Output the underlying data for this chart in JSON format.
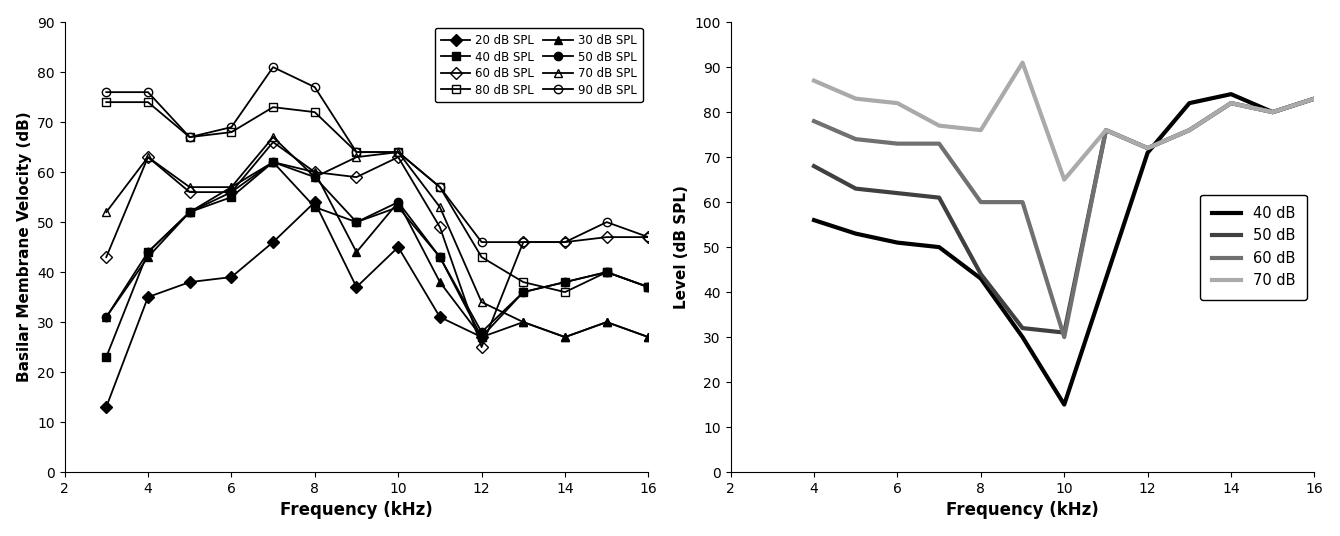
{
  "left": {
    "xlabel": "Frequency (kHz)",
    "ylabel": "Basilar Membrane Velocity (dB)",
    "xlim": [
      2,
      16
    ],
    "ylim": [
      0,
      90
    ],
    "xticks": [
      2,
      4,
      6,
      8,
      10,
      12,
      14,
      16
    ],
    "yticks": [
      0,
      10,
      20,
      30,
      40,
      50,
      60,
      70,
      80,
      90
    ],
    "series": [
      {
        "label": "20 dB SPL",
        "color": "#000000",
        "marker": "D",
        "markersize": 6,
        "fillstyle": "full",
        "linewidth": 1.3,
        "x": [
          3,
          4,
          5,
          6,
          7,
          8,
          9,
          10,
          11,
          12
        ],
        "y": [
          13,
          35,
          38,
          39,
          46,
          54,
          37,
          45,
          31,
          27
        ]
      },
      {
        "label": "30 dB SPL",
        "color": "#000000",
        "marker": "^",
        "markersize": 6,
        "fillstyle": "full",
        "linewidth": 1.3,
        "x": [
          3,
          4,
          5,
          6,
          7,
          8,
          9,
          10,
          11,
          12,
          13,
          14,
          15,
          16
        ],
        "y": [
          31,
          43,
          52,
          57,
          62,
          60,
          44,
          54,
          38,
          27,
          30,
          27,
          30,
          27
        ]
      },
      {
        "label": "40 dB SPL",
        "color": "#000000",
        "marker": "s",
        "markersize": 6,
        "fillstyle": "full",
        "linewidth": 1.3,
        "x": [
          3,
          4,
          5,
          6,
          7,
          8,
          9,
          10,
          11,
          12,
          13,
          14,
          15,
          16
        ],
        "y": [
          23,
          44,
          52,
          55,
          62,
          53,
          50,
          53,
          43,
          27,
          36,
          38,
          40,
          37
        ]
      },
      {
        "label": "50 dB SPL",
        "color": "#000000",
        "marker": "o",
        "markersize": 6,
        "fillstyle": "full",
        "linewidth": 1.3,
        "x": [
          3,
          4,
          5,
          6,
          7,
          8,
          9,
          10,
          11,
          12,
          13,
          14,
          15,
          16
        ],
        "y": [
          31,
          44,
          52,
          56,
          62,
          59,
          50,
          54,
          43,
          28,
          36,
          38,
          40,
          37
        ]
      },
      {
        "label": "60 dB SPL",
        "color": "#000000",
        "marker": "D",
        "markersize": 6,
        "fillstyle": "none",
        "linewidth": 1.3,
        "x": [
          3,
          4,
          5,
          6,
          7,
          8,
          9,
          10,
          11,
          12,
          13,
          14,
          15,
          16
        ],
        "y": [
          43,
          63,
          56,
          56,
          66,
          60,
          59,
          63,
          49,
          25,
          46,
          46,
          47,
          47
        ]
      },
      {
        "label": "70 dB SPL",
        "color": "#000000",
        "marker": "^",
        "markersize": 6,
        "fillstyle": "none",
        "linewidth": 1.3,
        "x": [
          3,
          4,
          5,
          6,
          7,
          8,
          9,
          10,
          11,
          12,
          13,
          14,
          15,
          16
        ],
        "y": [
          52,
          63,
          57,
          57,
          67,
          59,
          63,
          64,
          53,
          34,
          30,
          27,
          30,
          27
        ]
      },
      {
        "label": "80 dB SPL",
        "color": "#000000",
        "marker": "s",
        "markersize": 6,
        "fillstyle": "none",
        "linewidth": 1.3,
        "x": [
          3,
          4,
          5,
          6,
          7,
          8,
          9,
          10,
          11,
          12,
          13,
          14,
          15,
          16
        ],
        "y": [
          74,
          74,
          67,
          68,
          73,
          72,
          64,
          64,
          57,
          43,
          38,
          36,
          40,
          37
        ]
      },
      {
        "label": "90 dB SPL",
        "color": "#000000",
        "marker": "o",
        "markersize": 6,
        "fillstyle": "none",
        "linewidth": 1.3,
        "x": [
          3,
          4,
          5,
          6,
          7,
          8,
          9,
          10,
          11,
          12,
          13,
          14,
          15,
          16
        ],
        "y": [
          76,
          76,
          67,
          69,
          81,
          77,
          64,
          64,
          57,
          46,
          46,
          46,
          50,
          47
        ]
      }
    ]
  },
  "right": {
    "xlabel": "Frequency (kHz)",
    "ylabel": "Level (dB SPL)",
    "xlim": [
      2,
      16
    ],
    "ylim": [
      0,
      100
    ],
    "xticks": [
      2,
      4,
      6,
      8,
      10,
      12,
      14,
      16
    ],
    "yticks": [
      0,
      10,
      20,
      30,
      40,
      50,
      60,
      70,
      80,
      90,
      100
    ],
    "series": [
      {
        "label": "40 dB",
        "color": "#000000",
        "linewidth": 3.0,
        "x": [
          4,
          5,
          6,
          7,
          8,
          9,
          10,
          12,
          13,
          14,
          15,
          16
        ],
        "y": [
          56,
          53,
          51,
          50,
          43,
          30,
          15,
          71,
          82,
          84,
          80,
          83
        ]
      },
      {
        "label": "50 dB",
        "color": "#404040",
        "linewidth": 3.0,
        "x": [
          4,
          5,
          6,
          7,
          8,
          9,
          10,
          11,
          12,
          13,
          14,
          15,
          16
        ],
        "y": [
          68,
          63,
          62,
          61,
          44,
          32,
          31,
          76,
          72,
          76,
          82,
          80,
          83
        ]
      },
      {
        "label": "60 dB",
        "color": "#707070",
        "linewidth": 3.0,
        "x": [
          4,
          5,
          6,
          7,
          8,
          9,
          10,
          11,
          12,
          13,
          14,
          15,
          16
        ],
        "y": [
          78,
          74,
          73,
          73,
          60,
          60,
          30,
          76,
          72,
          76,
          82,
          80,
          83
        ]
      },
      {
        "label": "70 dB",
        "color": "#aaaaaa",
        "linewidth": 3.0,
        "x": [
          4,
          5,
          6,
          7,
          8,
          9,
          10,
          11,
          12,
          13,
          14,
          15,
          16
        ],
        "y": [
          87,
          83,
          82,
          77,
          76,
          91,
          65,
          76,
          72,
          76,
          82,
          80,
          83
        ]
      }
    ]
  },
  "legend_order_left": [
    0,
    2,
    4,
    6,
    1,
    3,
    5,
    7
  ]
}
